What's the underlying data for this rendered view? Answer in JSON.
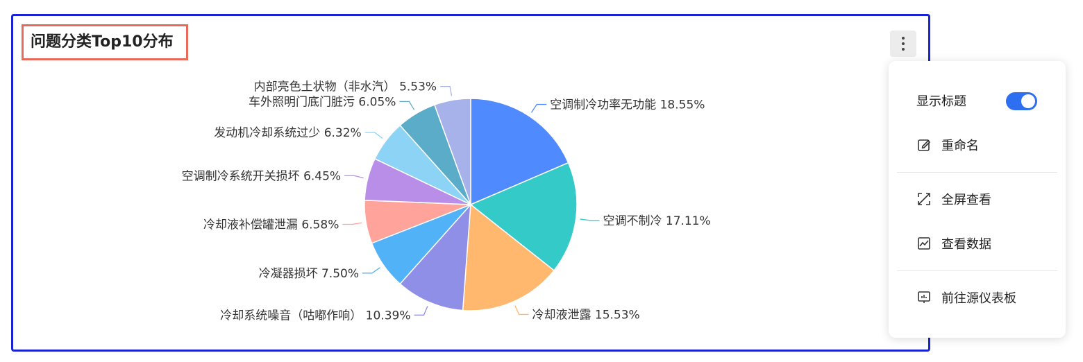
{
  "card": {
    "title": "问题分类Top10分布",
    "more_icon": "more-vertical-icon"
  },
  "menu": {
    "show_title_label": "显示标题",
    "show_title_on": true,
    "rename_label": "重命名",
    "fullscreen_label": "全屏查看",
    "view_data_label": "查看数据",
    "goto_dashboard_label": "前往源仪表板",
    "toggle_color": "#2d6ff0"
  },
  "chart_data": {
    "type": "pie",
    "title": "问题分类Top10分布",
    "categories": [
      "空调制冷功率无功能",
      "空调不制冷",
      "冷却液泄露",
      "冷却系统噪音（咕嘟作响）",
      "冷凝器损坏",
      "冷却液补偿罐泄漏",
      "空调制冷系统开关损坏",
      "发动机冷却系统过少",
      "车外照明门底门脏污",
      "内部亮色土状物（非水汽）"
    ],
    "values": [
      18.55,
      17.11,
      15.53,
      10.39,
      7.5,
      6.58,
      6.45,
      6.32,
      6.05,
      5.53
    ],
    "labels": [
      "空调制冷功率无功能 18.55%",
      "空调不制冷 17.11%",
      "冷却液泄露 15.53%",
      "冷却系统噪音（咕嘟作响） 10.39%",
      "冷凝器损坏 7.50%",
      "冷却液补偿罐泄漏 6.58%",
      "空调制冷系统开关损坏 6.45%",
      "发动机冷却系统过少 6.32%",
      "车外照明门底门脏污 6.05%",
      "内部亮色土状物（非水汽） 5.53%"
    ],
    "colors": [
      "#4f8bff",
      "#33cac8",
      "#ffb86e",
      "#8f8fe8",
      "#52b2f7",
      "#ffa39b",
      "#b98ee8",
      "#8cd3f6",
      "#5aacc8",
      "#a8b2ea"
    ],
    "legend": "none",
    "label_position": "outside"
  }
}
